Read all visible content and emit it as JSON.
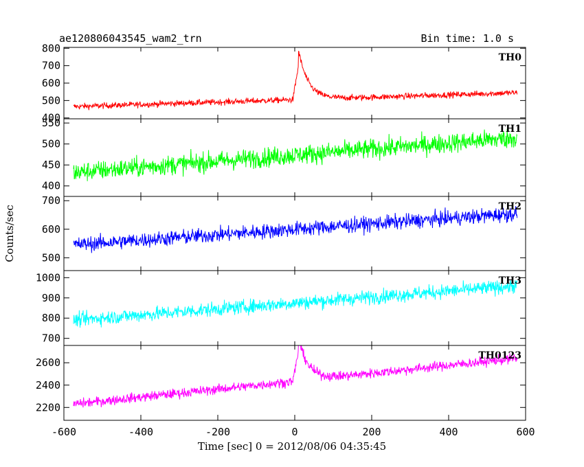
{
  "chart_data": {
    "type": "line",
    "title": "ae120806043545_wam2_trn",
    "bin_time_label": "Bin time: 1.0 s",
    "xlabel": "Time [sec] 0 = 2012/08/06 04:35:45",
    "ylabel": "Counts/sec",
    "xlim": [
      -600,
      600
    ],
    "x_ticks": [
      -600,
      -400,
      -200,
      0,
      200,
      400,
      600
    ],
    "x_range": [
      -575,
      578
    ],
    "panels": [
      {
        "name": "TH0",
        "color": "#ff0000",
        "ylim": [
          395,
          805
        ],
        "y_ticks": [
          400,
          500,
          600,
          700,
          800
        ],
        "baseline_start": 465,
        "baseline_end": 545,
        "noise_amplitude": 30,
        "peak": {
          "time": 10,
          "value": 800,
          "decay_sec": 25,
          "floor": 470
        }
      },
      {
        "name": "TH1",
        "color": "#00ff00",
        "ylim": [
          375,
          560
        ],
        "y_ticks": [
          400,
          450,
          500,
          550
        ],
        "baseline_start": 432,
        "baseline_end": 515,
        "noise_amplitude": 40,
        "peak": null
      },
      {
        "name": "TH2",
        "color": "#0000ff",
        "ylim": [
          455,
          715
        ],
        "y_ticks": [
          500,
          600,
          700
        ],
        "baseline_start": 545,
        "baseline_end": 655,
        "noise_amplitude": 45,
        "peak": null
      },
      {
        "name": "TH3",
        "color": "#00ffff",
        "ylim": [
          665,
          1035
        ],
        "y_ticks": [
          700,
          800,
          900,
          1000
        ],
        "baseline_start": 790,
        "baseline_end": 960,
        "noise_amplitude": 60,
        "peak": null
      },
      {
        "name": "TH0123",
        "color": "#ff00ff",
        "ylim": [
          2085,
          2755
        ],
        "y_ticks": [
          2200,
          2400,
          2600
        ],
        "baseline_start": 2230,
        "baseline_end": 2640,
        "noise_amplitude": 75,
        "peak": {
          "time": 10,
          "value": 2700,
          "decay_sec": 25,
          "floor": 2250
        }
      }
    ]
  }
}
